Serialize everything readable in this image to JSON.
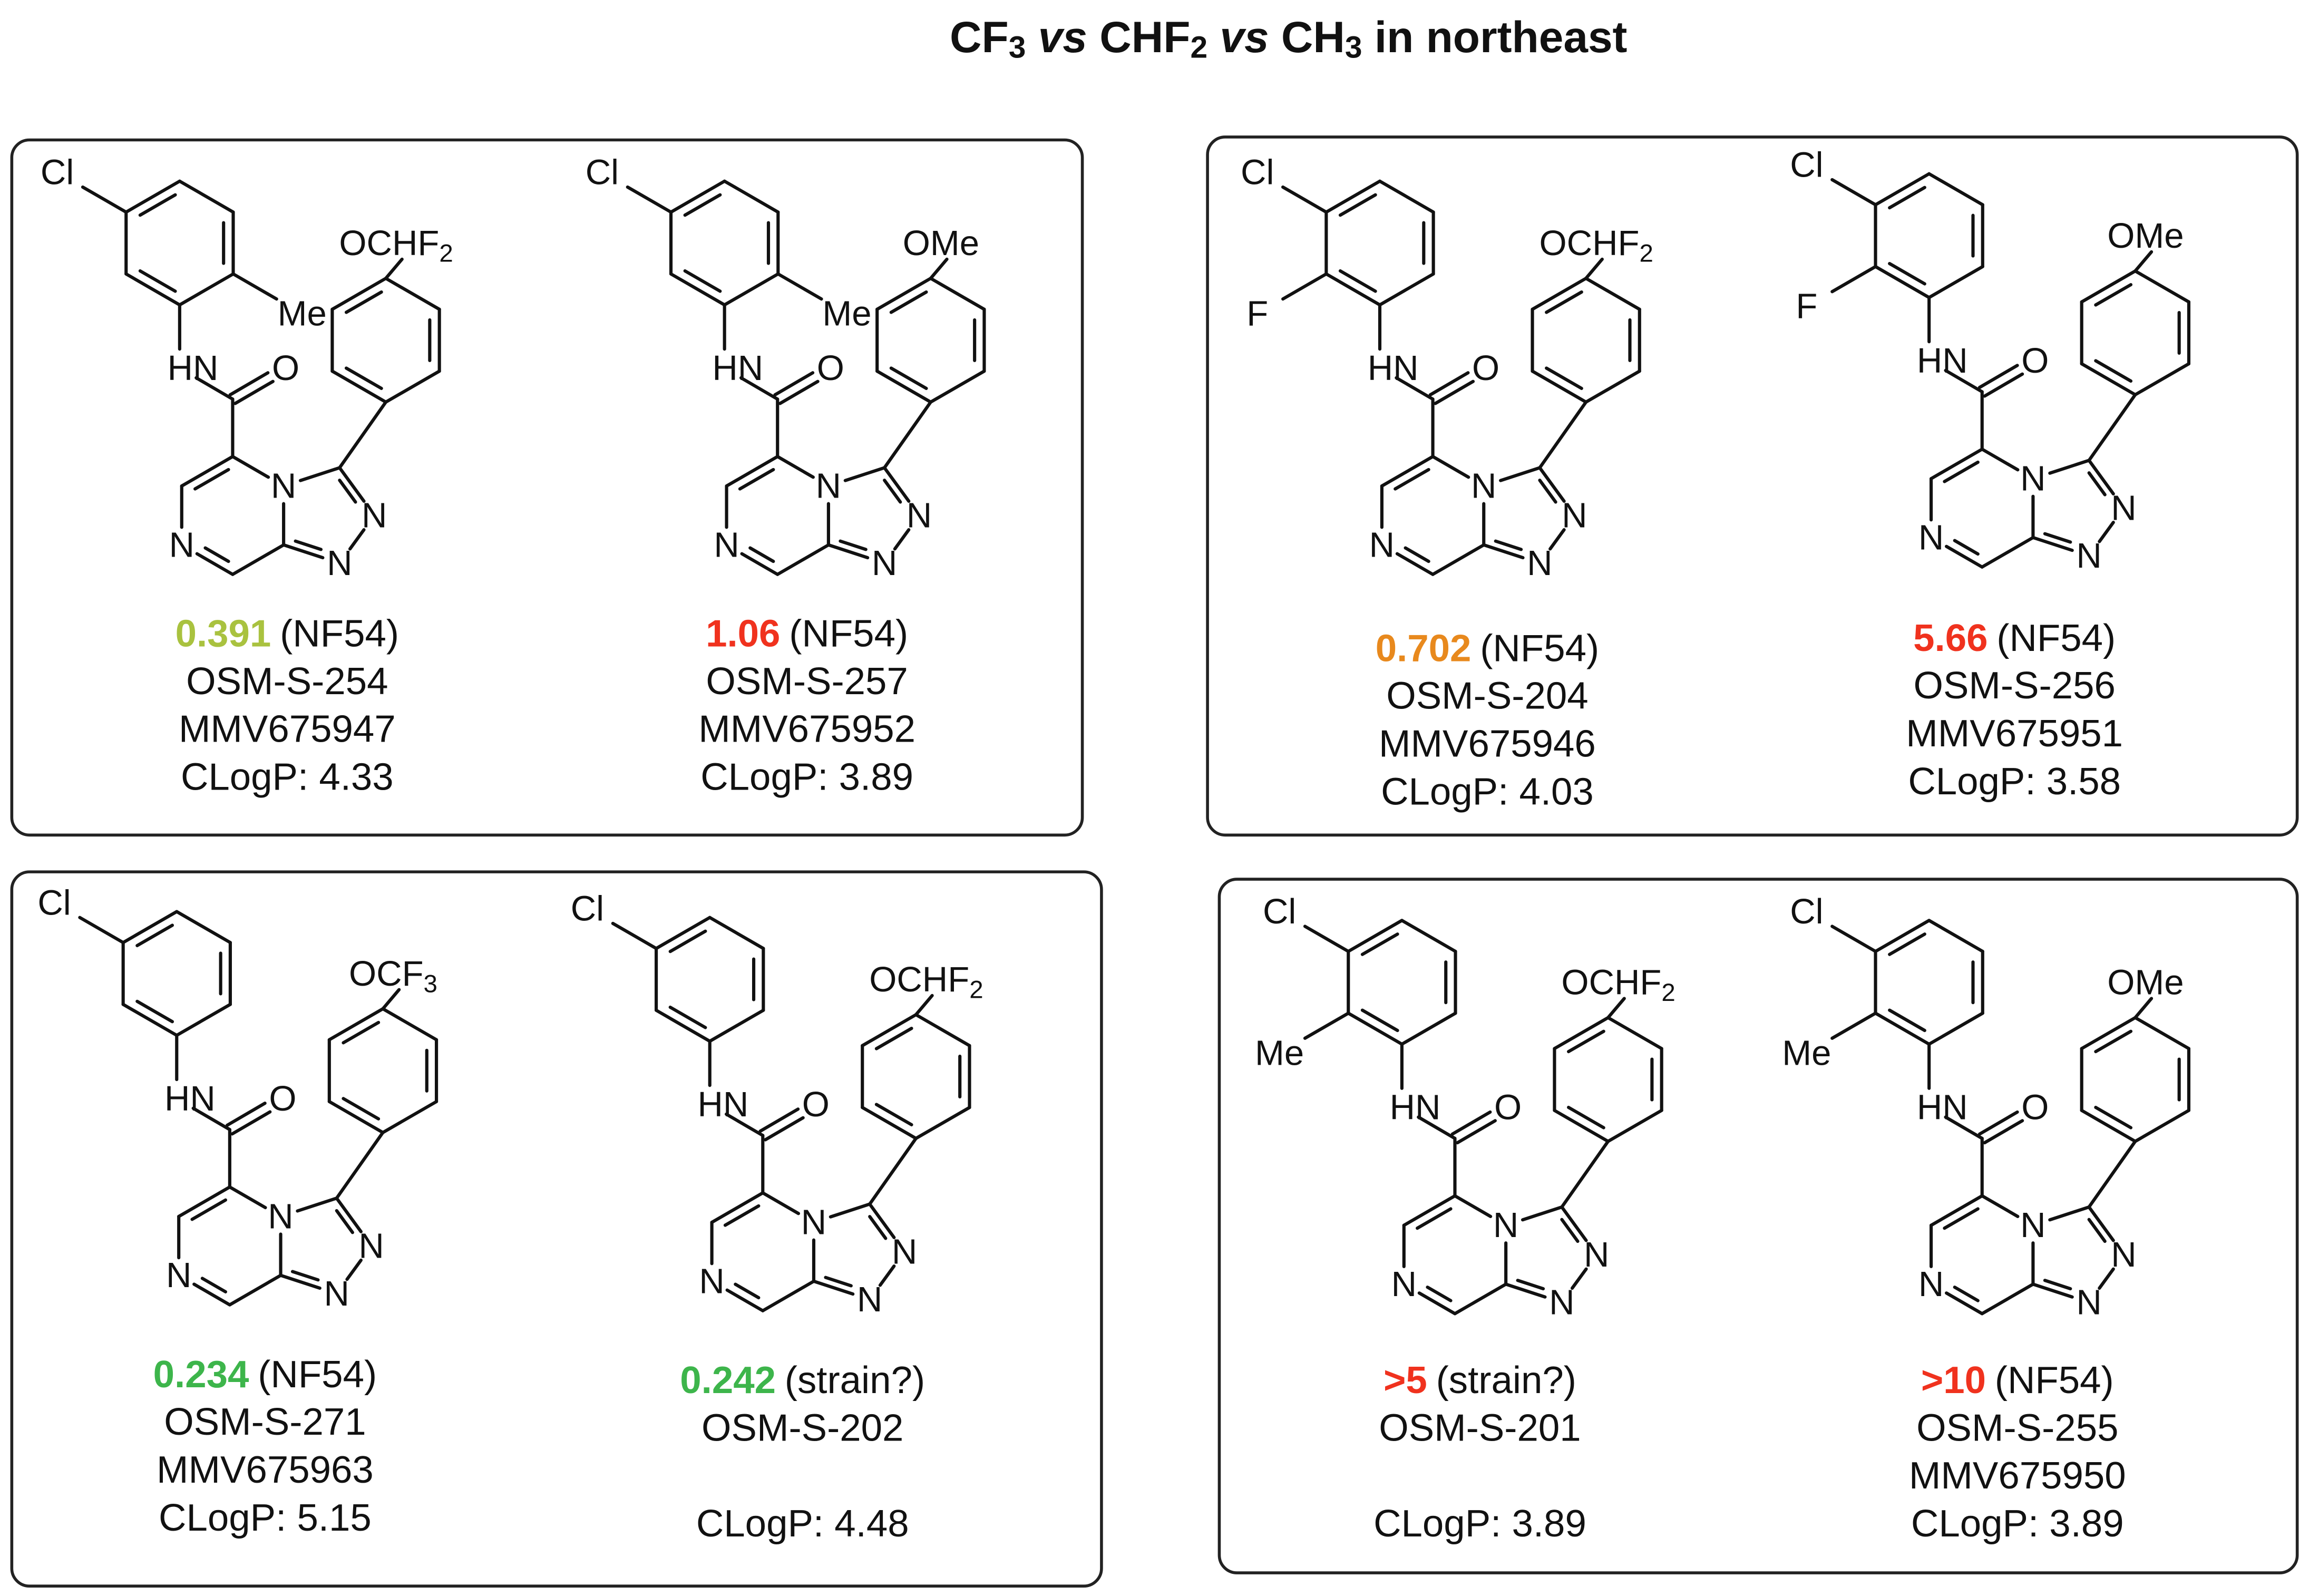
{
  "title": [
    {
      "text": "CF"
    },
    {
      "text": "3",
      "style": "sub"
    },
    {
      "text": " vs ",
      "style": "italic"
    },
    {
      "text": "CHF"
    },
    {
      "text": "2",
      "style": "sub"
    },
    {
      "text": " vs ",
      "style": "italic"
    },
    {
      "text": "CH"
    },
    {
      "text": "3",
      "style": "sub"
    },
    {
      "text": " in northeast"
    }
  ],
  "panels": [
    {
      "compounds": [
        {
          "aryl_substituents": [
            "Cl",
            "Me"
          ],
          "amine": "HN",
          "carbonyl": "O",
          "ring_n": [
            "N",
            "N",
            "N",
            "N"
          ],
          "substituent": {
            "parts": [
              {
                "text": "OCHF"
              },
              {
                "text": "2",
                "style": "sub"
              }
            ],
            "color": "#a9c23f"
          },
          "potency": {
            "value": 0.391,
            "color": "#a9c23f"
          },
          "assay": "(NF54)",
          "ids": [
            "OSM-S-254",
            "MMV675947"
          ],
          "clogp": "CLogP: 4.33"
        },
        {
          "aryl_substituents": [
            "Cl",
            "Me"
          ],
          "amine": "HN",
          "carbonyl": "O",
          "ring_n": [
            "N",
            "N",
            "N",
            "N"
          ],
          "substituent": {
            "parts": [
              {
                "text": "OMe"
              }
            ],
            "color": "#f0321e"
          },
          "potency": {
            "value": 1.06,
            "color": "#f0321e"
          },
          "assay": "(NF54)",
          "ids": [
            "OSM-S-257",
            "MMV675952"
          ],
          "clogp": "CLogP: 3.89"
        }
      ]
    },
    {
      "compounds": [
        {
          "aryl_substituents": [
            "Cl",
            "F"
          ],
          "amine": "HN",
          "carbonyl": "O",
          "ring_n": [
            "N",
            "N",
            "N",
            "N"
          ],
          "substituent": {
            "parts": [
              {
                "text": "OCHF"
              },
              {
                "text": "2",
                "style": "sub"
              }
            ],
            "color": "#e8891d"
          },
          "potency": {
            "value": 0.702,
            "color": "#e8891d"
          },
          "assay": "(NF54)",
          "ids": [
            "OSM-S-204",
            "MMV675946"
          ],
          "clogp": "CLogP: 4.03"
        },
        {
          "aryl_substituents": [
            "Cl",
            "F"
          ],
          "amine": "HN",
          "carbonyl": "O",
          "ring_n": [
            "N",
            "N",
            "N",
            "N"
          ],
          "substituent": {
            "parts": [
              {
                "text": "OMe"
              }
            ],
            "color": "#f0321e"
          },
          "potency": {
            "value": 5.66,
            "color": "#f0321e"
          },
          "assay": "(NF54)",
          "ids": [
            "OSM-S-256",
            "MMV675951"
          ],
          "clogp": "CLogP: 3.58"
        }
      ]
    },
    {
      "compounds": [
        {
          "aryl_substituents": [
            "Cl"
          ],
          "amine": "HN",
          "carbonyl": "O",
          "ring_n": [
            "N",
            "N",
            "N",
            "N"
          ],
          "substituent": {
            "parts": [
              {
                "text": "OCF"
              },
              {
                "text": "3",
                "style": "sub"
              }
            ],
            "color": "#3db54b"
          },
          "potency": {
            "value": 0.234,
            "color": "#3db54b"
          },
          "assay": "(NF54)",
          "ids": [
            "OSM-S-271",
            "MMV675963"
          ],
          "clogp": "CLogP: 5.15"
        },
        {
          "aryl_substituents": [
            "Cl"
          ],
          "amine": "HN",
          "carbonyl": "O",
          "ring_n": [
            "N",
            "N",
            "N",
            "N"
          ],
          "substituent": {
            "parts": [
              {
                "text": "OCHF"
              },
              {
                "text": "2",
                "style": "sub"
              }
            ],
            "color": "#3db54b"
          },
          "potency": {
            "value": 0.242,
            "color": "#3db54b"
          },
          "assay": "(strain?)",
          "ids": [
            "OSM-S-202"
          ],
          "clogp": "CLogP: 4.48"
        }
      ]
    },
    {
      "compounds": [
        {
          "aryl_substituents": [
            "Cl",
            "Me"
          ],
          "amine": "HN",
          "carbonyl": "O",
          "ring_n": [
            "N",
            "N",
            "N",
            "N"
          ],
          "substituent": {
            "parts": [
              {
                "text": "OCHF"
              },
              {
                "text": "2",
                "style": "sub"
              }
            ],
            "color": "#f0321e"
          },
          "potency": {
            "value": ">5",
            "color": "#f0321e"
          },
          "assay": "(strain?)",
          "ids": [
            "OSM-S-201"
          ],
          "clogp": "CLogP: 3.89"
        },
        {
          "aryl_substituents": [
            "Cl",
            "Me"
          ],
          "amine": "HN",
          "carbonyl": "O",
          "ring_n": [
            "N",
            "N",
            "N",
            "N"
          ],
          "substituent": {
            "parts": [
              {
                "text": "OMe"
              }
            ],
            "color": "#f0321e"
          },
          "potency": {
            "value": ">10",
            "color": "#f0321e"
          },
          "assay": "(NF54)",
          "ids": [
            "OSM-S-255",
            "MMV675950"
          ],
          "clogp": "CLogP: 3.89"
        }
      ]
    }
  ]
}
